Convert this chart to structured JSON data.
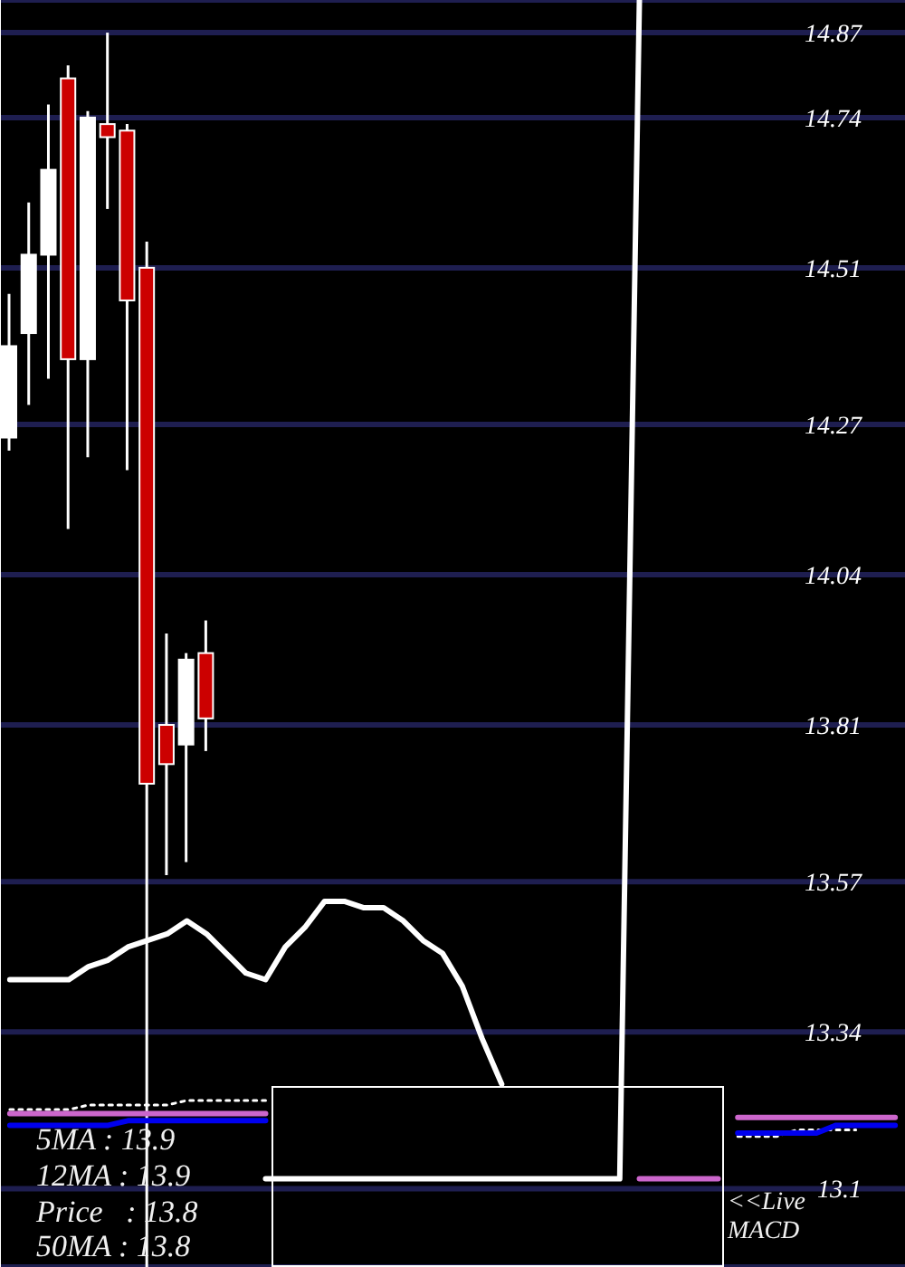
{
  "chart_data": {
    "type": "candlestick",
    "categories": [
      null,
      null,
      null,
      null,
      null,
      null,
      null,
      null,
      null,
      null,
      null,
      null,
      null,
      null,
      null,
      null,
      null,
      null,
      null,
      null,
      null,
      null,
      null,
      null,
      null,
      null,
      null,
      null,
      null,
      null,
      null,
      null,
      null,
      null,
      null,
      null,
      null,
      null,
      null,
      null,
      null,
      null,
      null,
      null,
      null,
      null
    ],
    "ohlc": [
      [
        14.25,
        14.47,
        14.23,
        14.39
      ],
      [
        14.41,
        14.61,
        14.3,
        14.53
      ],
      [
        14.53,
        14.76,
        14.34,
        14.66
      ],
      [
        14.8,
        14.82,
        14.11,
        14.37
      ],
      [
        14.37,
        14.75,
        14.22,
        14.74
      ],
      [
        14.73,
        14.87,
        14.6,
        14.71
      ],
      [
        14.72,
        14.73,
        14.2,
        14.46
      ],
      [
        14.51,
        14.55,
        12.98,
        13.72
      ],
      [
        13.81,
        13.95,
        13.58,
        13.75
      ],
      [
        13.78,
        13.92,
        13.6,
        13.91
      ],
      [
        13.92,
        13.97,
        13.77,
        13.82
      ],
      null,
      null,
      null,
      null,
      null,
      null,
      null,
      null,
      null,
      null,
      null,
      null,
      null,
      null,
      null,
      null,
      null,
      null,
      null,
      null,
      null,
      null,
      null,
      null,
      null,
      null,
      null,
      null,
      null,
      null,
      null,
      null,
      null,
      null,
      null
    ],
    "colors": [
      "#ffffff",
      "#ffffff",
      "#ffffff",
      "#cc0000",
      "#ffffff",
      "#cc0000",
      "#cc0000",
      "#cc0000",
      "#cc0000",
      "#ffffff",
      "#cc0000",
      null,
      null,
      null,
      null,
      null,
      null,
      null,
      null,
      null,
      null,
      null,
      null,
      null,
      null,
      null,
      null,
      null,
      null,
      null,
      null,
      null,
      null,
      null,
      null,
      null,
      null,
      null,
      null,
      null,
      null,
      null,
      null,
      null,
      null,
      null
    ],
    "series": [
      {
        "type": "line",
        "color": "#ffffff",
        "values": [
          13.42,
          13.42,
          13.42,
          13.42,
          13.44,
          13.45,
          13.47,
          13.48,
          13.49,
          13.51,
          13.49,
          13.46,
          13.43,
          13.42,
          13.47,
          13.5,
          13.54,
          13.54,
          13.53,
          13.53,
          13.51,
          13.48,
          13.46,
          13.41,
          13.33,
          13.26,
          null,
          null,
          null,
          null,
          null,
          null,
          null,
          null,
          null,
          null,
          null,
          null,
          null,
          null,
          null,
          null,
          null,
          null,
          null,
          null
        ]
      },
      {
        "type": "line",
        "color": "#ffffff",
        "line_style": "dotted",
        "values": [
          13.221,
          13.221,
          13.221,
          13.221,
          13.228,
          13.228,
          13.228,
          13.228,
          13.228,
          13.235,
          13.235,
          13.235,
          13.235,
          13.235,
          null,
          null,
          null,
          null,
          null,
          null,
          null,
          null,
          null,
          null,
          null,
          null,
          null,
          null,
          null,
          null,
          null,
          null,
          null,
          null,
          null,
          null,
          null,
          13.18,
          13.18,
          13.18,
          13.19,
          13.19,
          13.19,
          13.19,
          null,
          null
        ]
      },
      {
        "type": "line",
        "color": "#cc66cc",
        "values": [
          13.215,
          13.215,
          13.215,
          13.215,
          13.215,
          13.215,
          13.215,
          13.215,
          13.215,
          13.215,
          13.215,
          13.215,
          13.215,
          13.215,
          null,
          null,
          null,
          null,
          null,
          null,
          null,
          null,
          null,
          null,
          null,
          null,
          null,
          null,
          null,
          null,
          null,
          null,
          null,
          null,
          null,
          null,
          null,
          13.209,
          13.209,
          13.209,
          13.209,
          13.209,
          13.209,
          13.209,
          13.209,
          13.209
        ]
      },
      {
        "type": "line",
        "color": "#0000ee",
        "values": [
          13.197,
          13.197,
          13.197,
          13.197,
          13.197,
          13.197,
          13.204,
          13.204,
          13.204,
          13.204,
          13.204,
          13.204,
          13.204,
          13.204,
          null,
          null,
          null,
          null,
          null,
          null,
          null,
          null,
          null,
          null,
          null,
          null,
          null,
          null,
          null,
          null,
          null,
          null,
          null,
          null,
          null,
          null,
          null,
          13.185,
          13.185,
          13.185,
          13.185,
          13.185,
          13.197,
          13.197,
          13.197,
          13.197
        ]
      },
      {
        "type": "line",
        "color": "#ffffff",
        "values": [
          null,
          null,
          null,
          null,
          null,
          null,
          null,
          null,
          null,
          null,
          null,
          null,
          null,
          13.115,
          13.115,
          13.115,
          13.115,
          13.115,
          13.115,
          13.115,
          13.115,
          13.115,
          13.115,
          13.115,
          13.115,
          13.115,
          13.115,
          13.115,
          13.115,
          13.115,
          13.115,
          13.115,
          14.92,
          null,
          null,
          null,
          null,
          null,
          null,
          null,
          null,
          null,
          null,
          null,
          null,
          null
        ]
      },
      {
        "type": "line",
        "color": "#cc66cc",
        "values": [
          null,
          null,
          null,
          null,
          null,
          null,
          null,
          null,
          null,
          null,
          null,
          null,
          null,
          null,
          null,
          null,
          null,
          null,
          null,
          null,
          null,
          null,
          null,
          null,
          null,
          null,
          null,
          null,
          null,
          null,
          null,
          null,
          13.115,
          13.115,
          13.115,
          13.115,
          13.115,
          null,
          null,
          null,
          null,
          null,
          null,
          null,
          null,
          null
        ]
      }
    ],
    "ylim": [
      12.98,
      14.92
    ],
    "yticks": [
      13.1,
      13.34,
      13.57,
      13.81,
      14.04,
      14.27,
      14.51,
      14.74,
      14.87
    ],
    "grid": "y",
    "tick_labels": "y",
    "marker": "none",
    "annotations": [
      "5MA : 13.9",
      "12MA : 13.9",
      "Price   : 13.8",
      "50MA : 13.8",
      "<<Live",
      "MACD"
    ]
  }
}
